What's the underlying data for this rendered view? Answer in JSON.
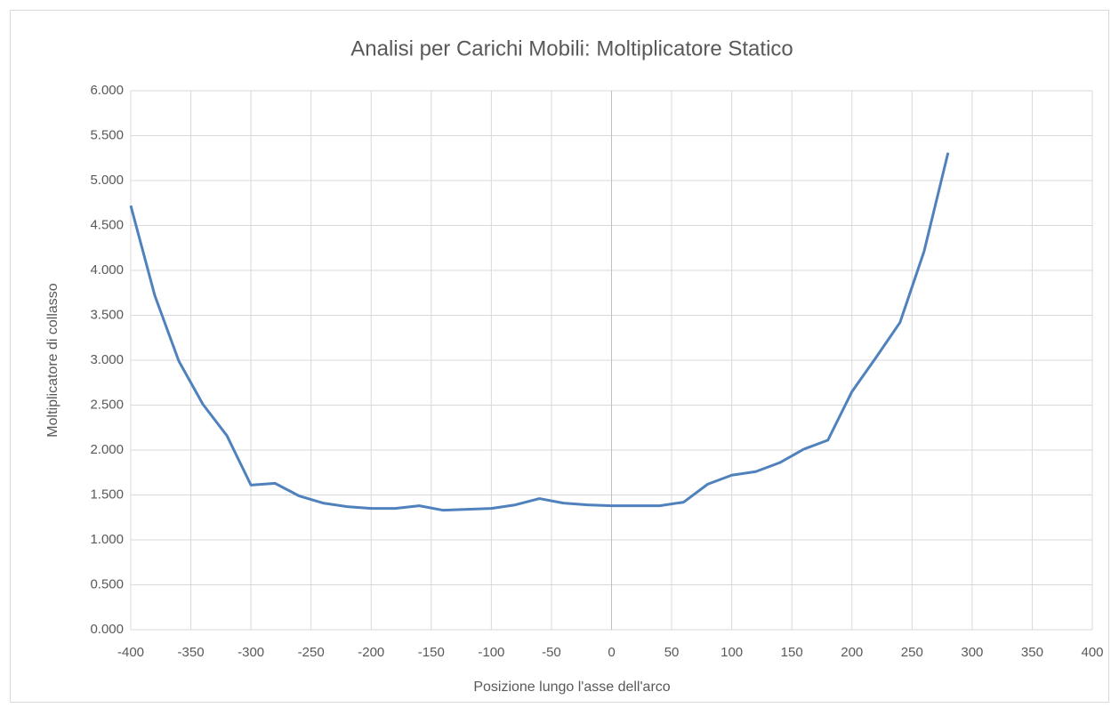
{
  "chart_data": {
    "type": "line",
    "title": "Analisi per Carichi Mobili: Moltiplicatore Statico",
    "x_label": "Posizione lungo l'asse dell'arco",
    "y_label": "Moltiplicatore di collasso",
    "x": [
      -400,
      -380,
      -360,
      -340,
      -320,
      -300,
      -280,
      -260,
      -240,
      -220,
      -200,
      -180,
      -160,
      -140,
      -120,
      -100,
      -80,
      -60,
      -40,
      -20,
      0,
      20,
      40,
      60,
      80,
      100,
      120,
      140,
      160,
      180,
      200,
      220,
      240,
      260,
      280
    ],
    "series": [
      {
        "color": "#4f81bd",
        "values": [
          4.72,
          3.72,
          2.99,
          2.51,
          2.16,
          1.61,
          1.63,
          1.49,
          1.41,
          1.37,
          1.35,
          1.35,
          1.38,
          1.33,
          1.34,
          1.35,
          1.39,
          1.46,
          1.41,
          1.39,
          1.38,
          1.38,
          1.38,
          1.42,
          1.62,
          1.72,
          1.76,
          1.86,
          2.01,
          2.11,
          2.65,
          3.03,
          3.42,
          4.21,
          5.31
        ]
      }
    ],
    "xlim": [
      -400,
      400
    ],
    "xticks": [
      -400,
      -350,
      -300,
      -250,
      -200,
      -150,
      -100,
      -50,
      0,
      50,
      100,
      150,
      200,
      250,
      300,
      350,
      400
    ],
    "ylim": [
      0,
      6
    ],
    "yticks": [
      {
        "value": 0,
        "label": "0.000"
      },
      {
        "value": 0.5,
        "label": "0.500"
      },
      {
        "value": 1,
        "label": "1.000"
      },
      {
        "value": 1.5,
        "label": "1.500"
      },
      {
        "value": 2,
        "label": "2.000"
      },
      {
        "value": 2.5,
        "label": "2.500"
      },
      {
        "value": 3,
        "label": "3.000"
      },
      {
        "value": 3.5,
        "label": "3.500"
      },
      {
        "value": 4,
        "label": "4.000"
      },
      {
        "value": 4.5,
        "label": "4.500"
      },
      {
        "value": 5,
        "label": "5.000"
      },
      {
        "value": 5.5,
        "label": "5.500"
      },
      {
        "value": 6,
        "label": "6.000"
      }
    ],
    "grid": true
  }
}
